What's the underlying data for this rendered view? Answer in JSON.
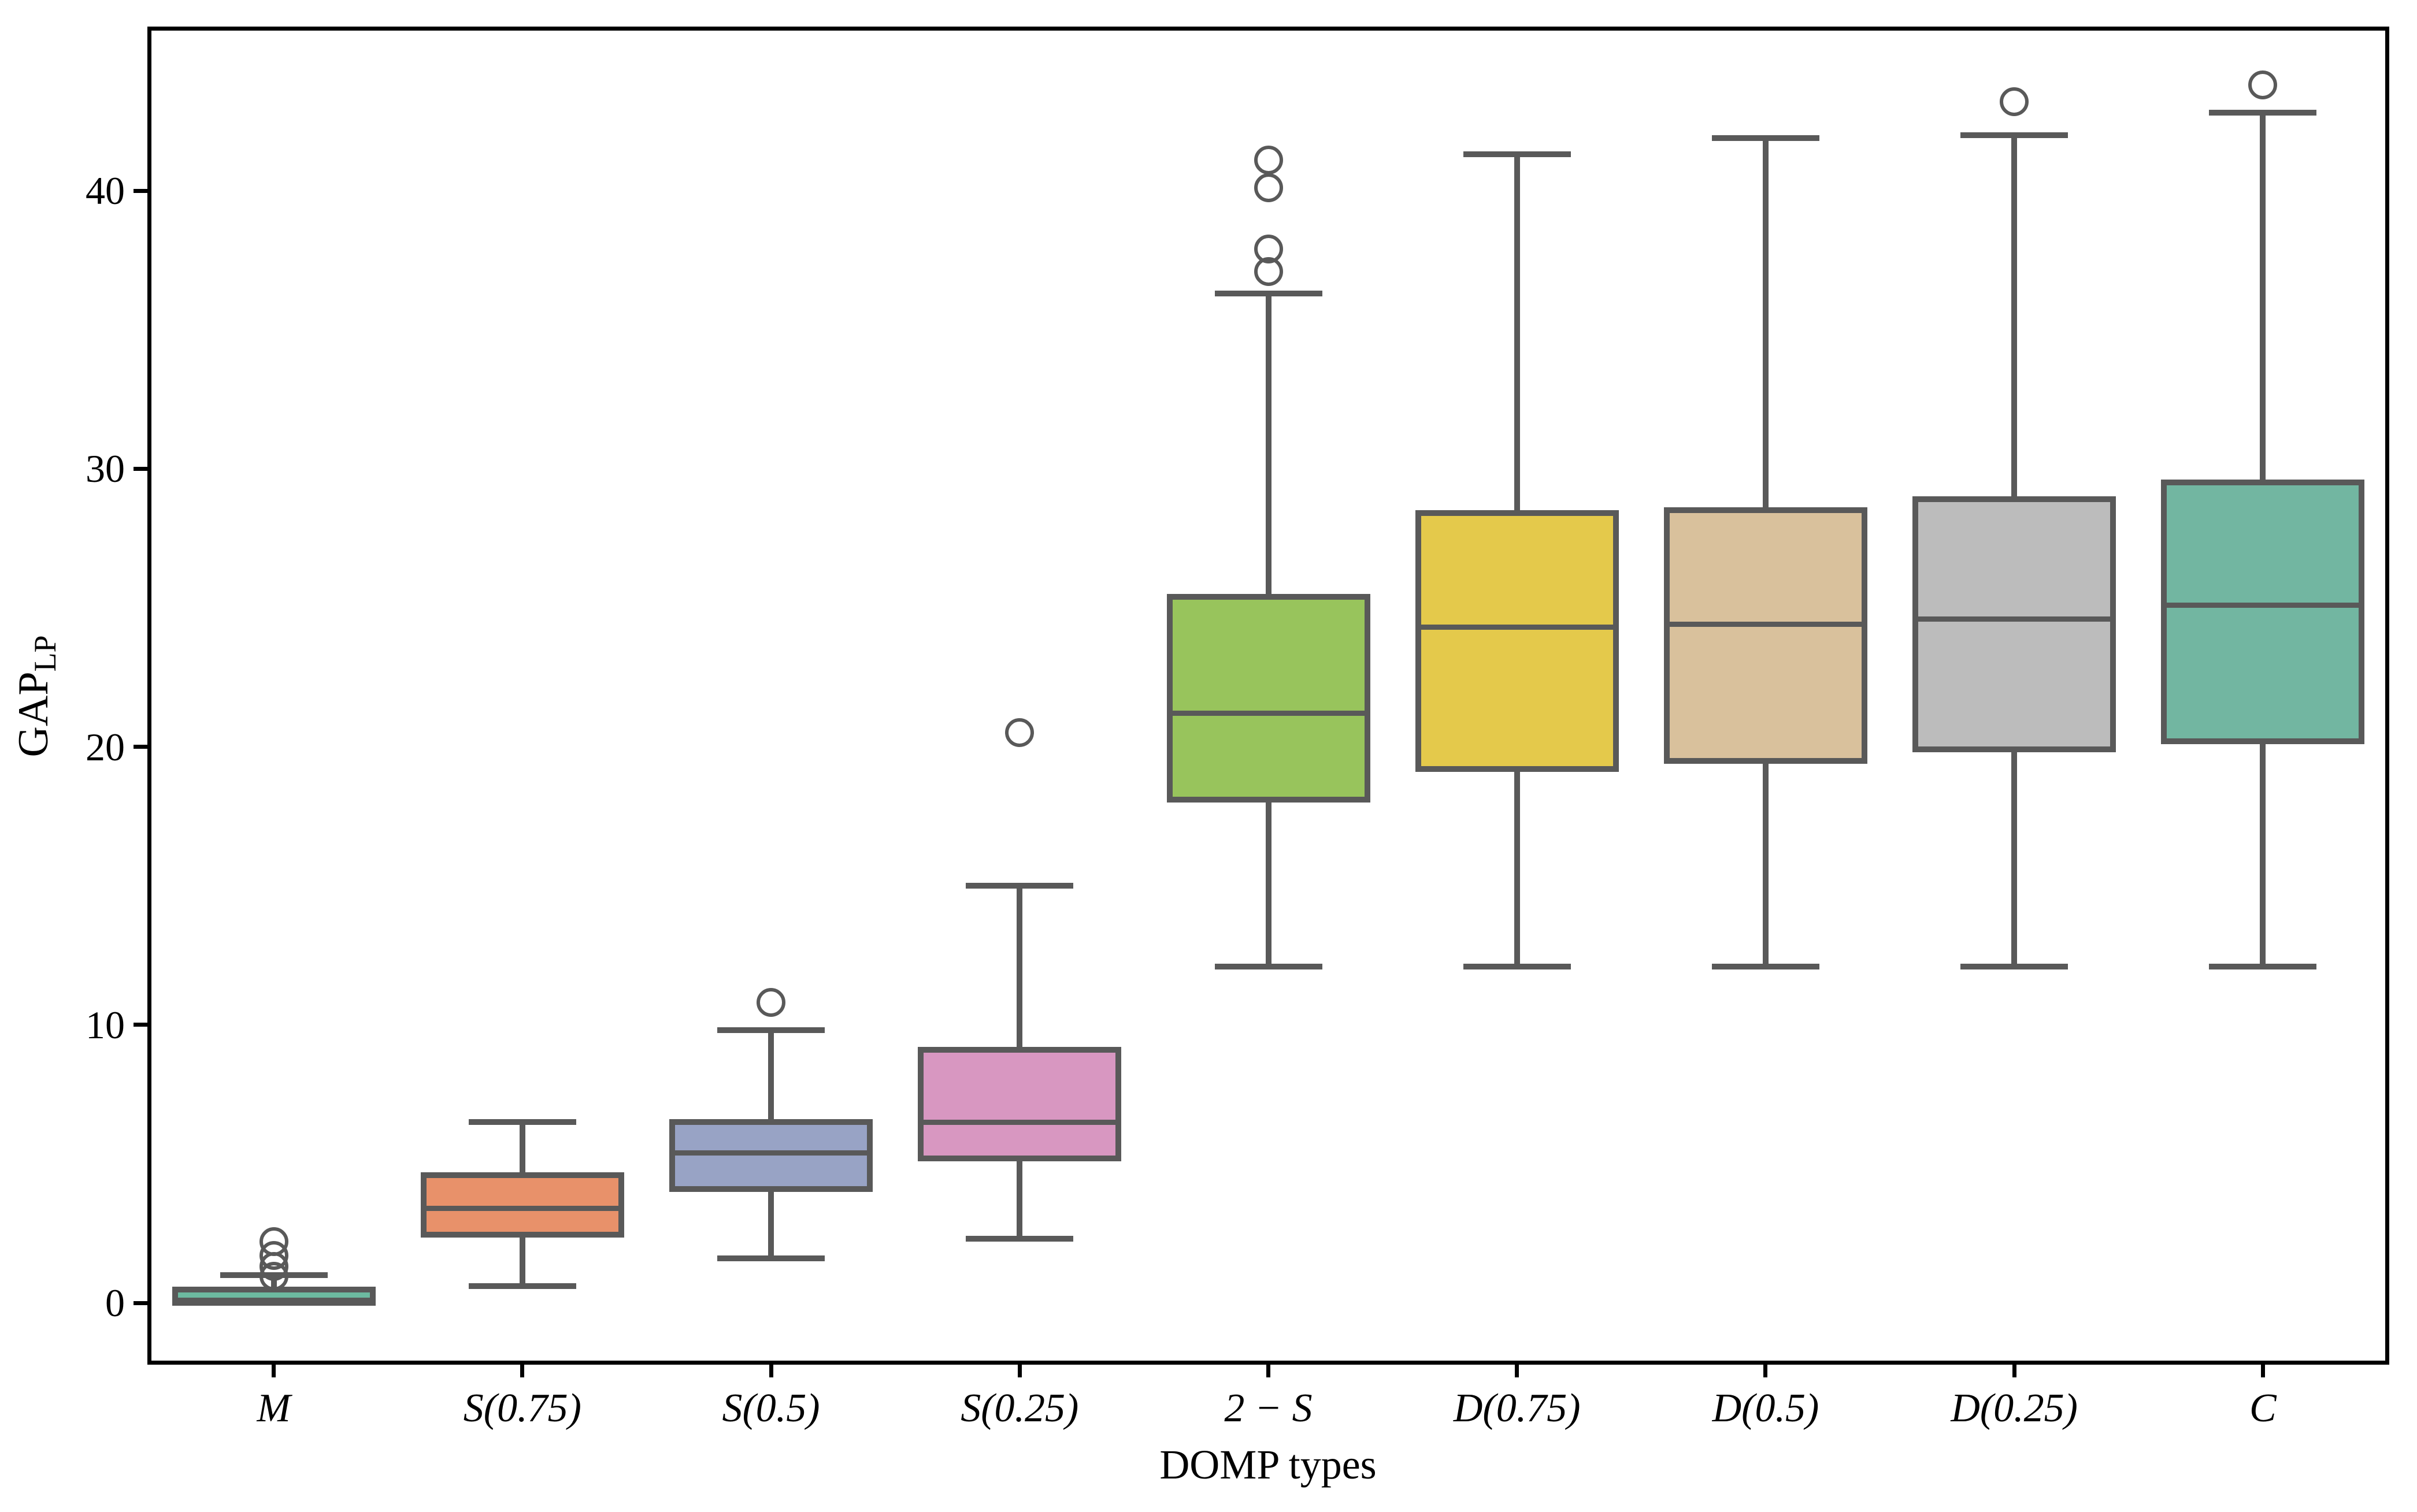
{
  "chart_data": {
    "type": "box",
    "title": "",
    "xlabel": "DOMP types",
    "ylabel": "GAP",
    "ylabel_subscript": "LP",
    "yticks": [
      0,
      10,
      20,
      30,
      40
    ],
    "ylim": [
      -2.1,
      45.8
    ],
    "grid": false,
    "legend_position": "none",
    "categories": [
      "M",
      "S(0.75)",
      "S(0.5)",
      "S(0.25)",
      "2 − S",
      "D(0.75)",
      "D(0.5)",
      "D(0.25)",
      "C"
    ],
    "boxes": [
      {
        "label": "M",
        "color": "#6cbaa0",
        "whisker_low": 0.0,
        "q1": 0.0,
        "median": 0.1,
        "q3": 0.47,
        "whisker_high": 1.0,
        "outliers": [
          0.95,
          1.3,
          1.7,
          2.2
        ]
      },
      {
        "label": "S(0.75)",
        "color": "#e8916a",
        "whisker_low": 0.6,
        "q1": 2.45,
        "median": 3.4,
        "q3": 4.6,
        "whisker_high": 6.5,
        "outliers": []
      },
      {
        "label": "S(0.5)",
        "color": "#98a3c5",
        "whisker_low": 1.6,
        "q1": 4.1,
        "median": 5.4,
        "q3": 6.5,
        "whisker_high": 9.8,
        "outliers": [
          10.8
        ]
      },
      {
        "label": "S(0.25)",
        "color": "#d897c1",
        "whisker_low": 2.3,
        "q1": 5.2,
        "median": 6.5,
        "q3": 9.1,
        "whisker_high": 15.0,
        "outliers": [
          20.5
        ]
      },
      {
        "label": "2 − S",
        "color": "#98c45c",
        "whisker_low": 12.1,
        "q1": 18.1,
        "median": 21.2,
        "q3": 25.4,
        "whisker_high": 36.3,
        "outliers": [
          37.1,
          37.9,
          40.1,
          41.1
        ]
      },
      {
        "label": "D(0.75)",
        "color": "#e4c94b",
        "whisker_low": 12.1,
        "q1": 19.2,
        "median": 24.3,
        "q3": 28.4,
        "whisker_high": 41.3,
        "outliers": []
      },
      {
        "label": "D(0.5)",
        "color": "#d9c19c",
        "whisker_low": 12.1,
        "q1": 19.5,
        "median": 24.4,
        "q3": 28.5,
        "whisker_high": 41.9,
        "outliers": []
      },
      {
        "label": "D(0.25)",
        "color": "#bcbcbc",
        "whisker_low": 12.1,
        "q1": 19.9,
        "median": 24.6,
        "q3": 28.9,
        "whisker_high": 42.0,
        "outliers": [
          43.2
        ]
      },
      {
        "label": "C",
        "color": "#72b6a1",
        "whisker_low": 12.1,
        "q1": 20.2,
        "median": 25.1,
        "q3": 29.5,
        "whisker_high": 42.8,
        "outliers": [
          43.8
        ]
      }
    ],
    "edge_color": "#595959",
    "spine_color": "#000000",
    "background_color": "#ffffff"
  }
}
